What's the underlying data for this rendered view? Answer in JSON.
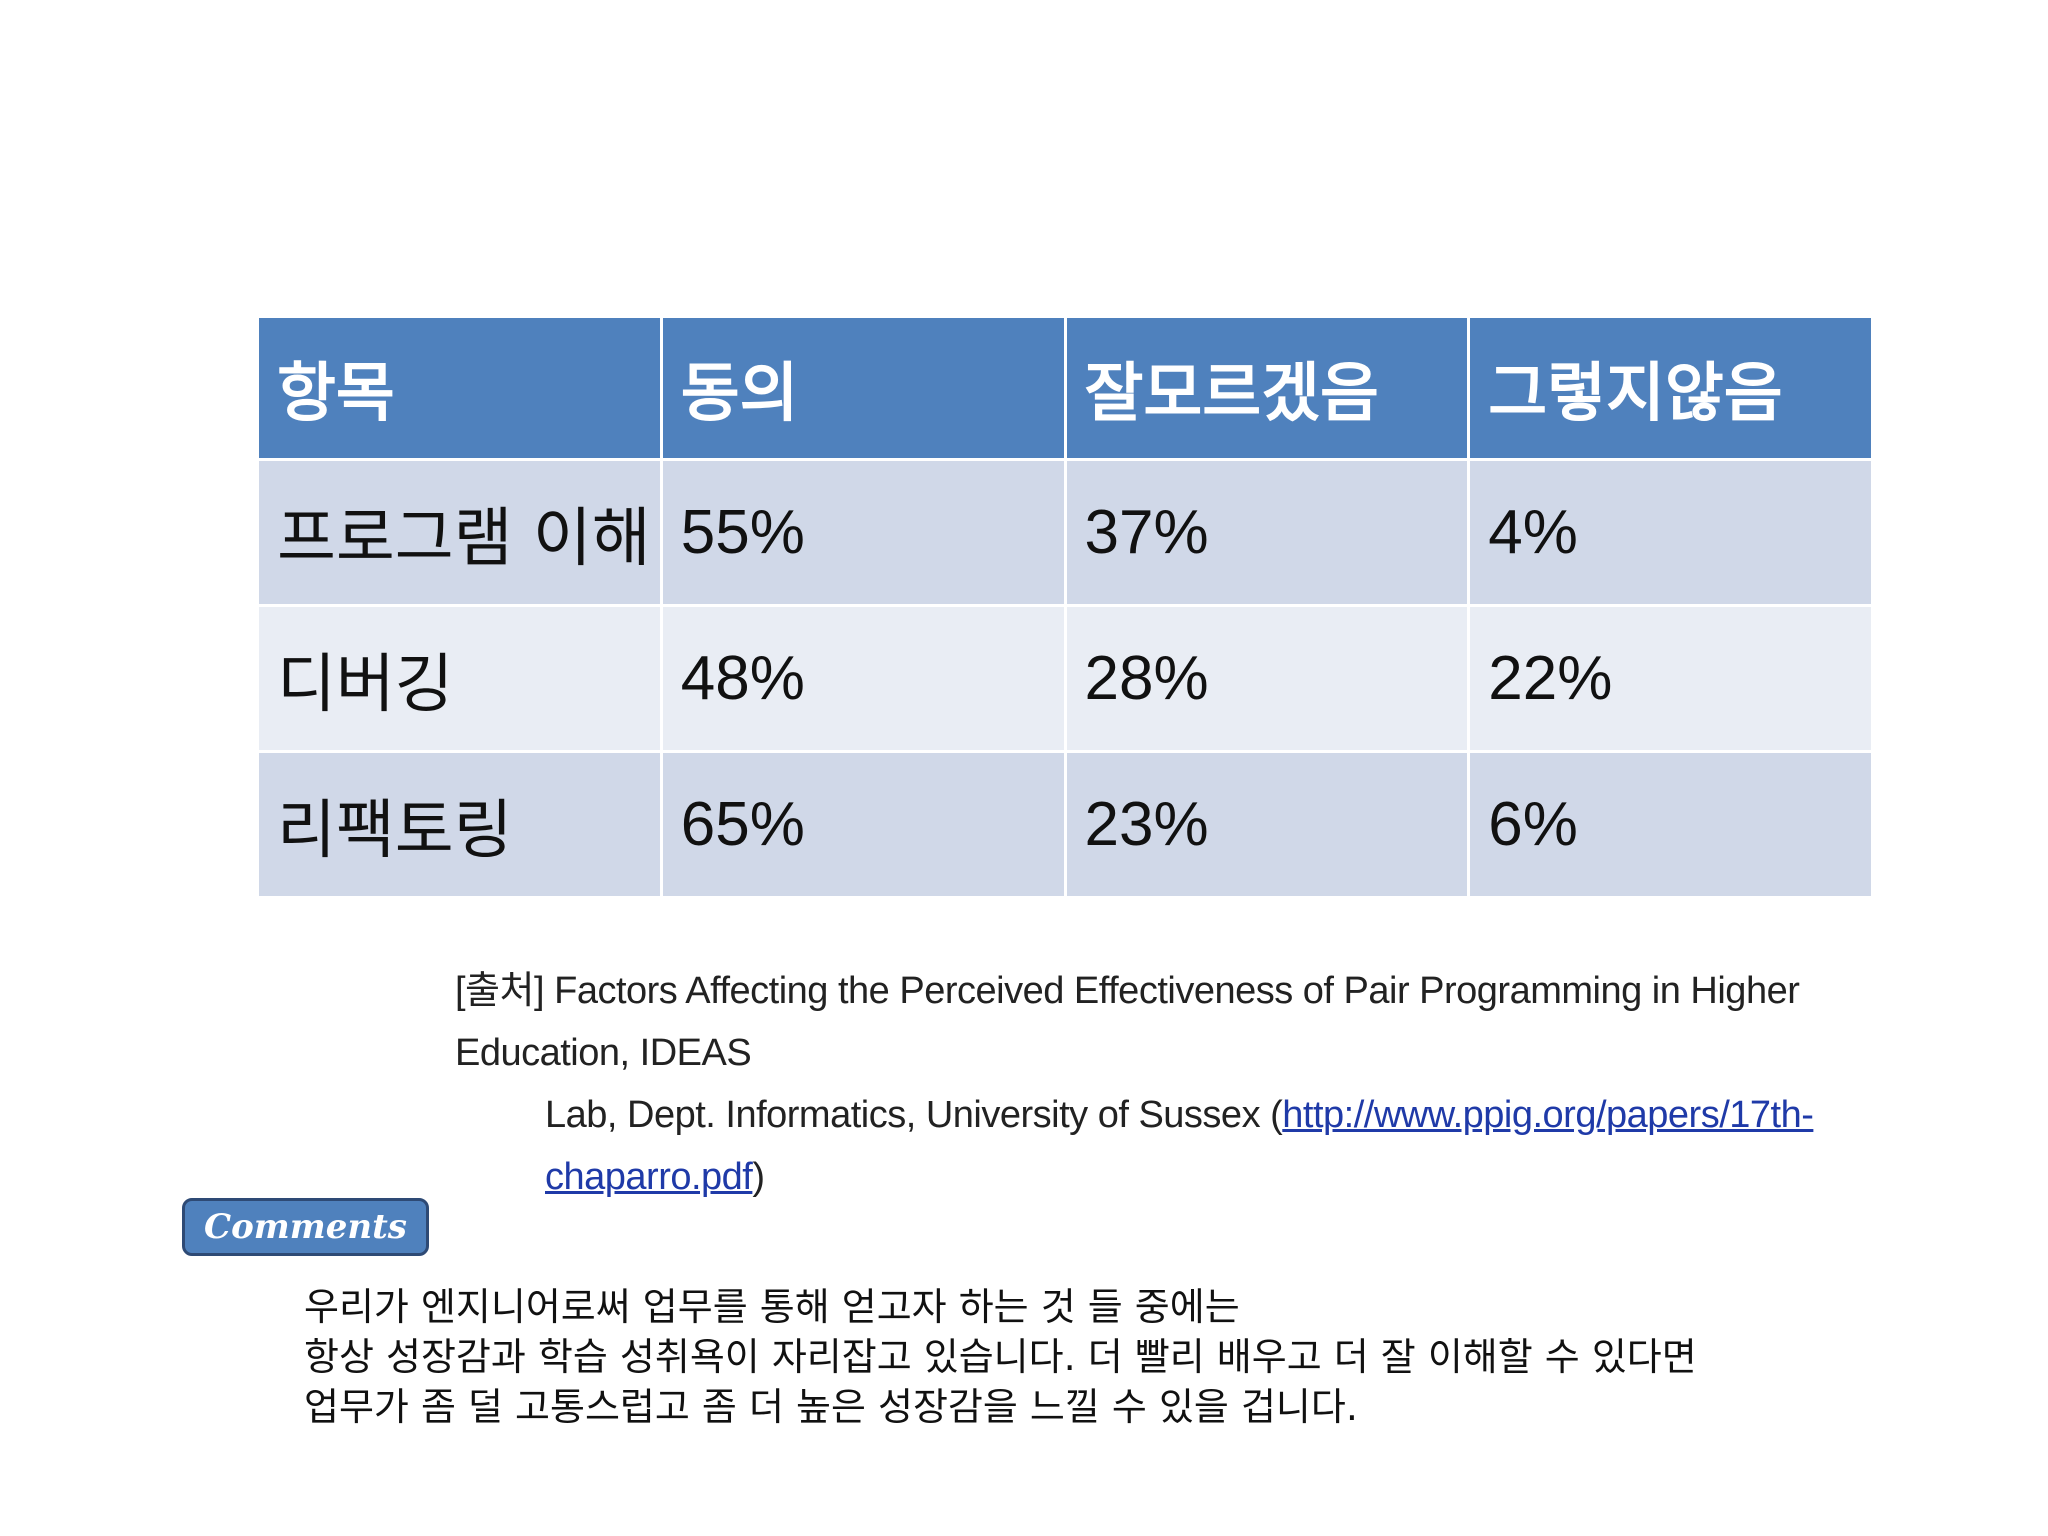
{
  "table": {
    "headers": [
      "항목",
      "동의",
      "잘모르겠음",
      "그렇지않음"
    ],
    "rows": [
      {
        "label": "프로그램 이해",
        "agree": "55%",
        "unsure": "37%",
        "disagree": "4%"
      },
      {
        "label": "디버깅",
        "agree": "48%",
        "unsure": "28%",
        "disagree": "22%"
      },
      {
        "label": "리팩토링",
        "agree": "65%",
        "unsure": "23%",
        "disagree": "6%"
      }
    ]
  },
  "source": {
    "prefix": "[출처]",
    "line1": " Factors Affecting the Perceived Effectiveness of Pair Programming in Higher Education,  IDEAS",
    "line2": "Lab, Dept. Informatics, University of Sussex (",
    "link": "http://www.ppig.org/papers/17th-chaparro.pdf",
    "suffix": ")"
  },
  "comments": {
    "label": "Comments",
    "lines": [
      "우리가 엔지니어로써 업무를 통해 얻고자 하는 것 들 중에는",
      "항상 성장감과 학습 성취욕이 자리잡고 있습니다. 더 빨리 배우고 더 잘 이해할 수 있다면",
      "업무가 좀 덜 고통스럽고 좀 더 높은 성장감을 느낄 수 있을 겁니다."
    ]
  },
  "colors": {
    "header_bg": "#4f81bd",
    "row_odd_bg": "#d0d8e8",
    "row_even_bg": "#e9edf4",
    "link": "#1f3aa8"
  }
}
